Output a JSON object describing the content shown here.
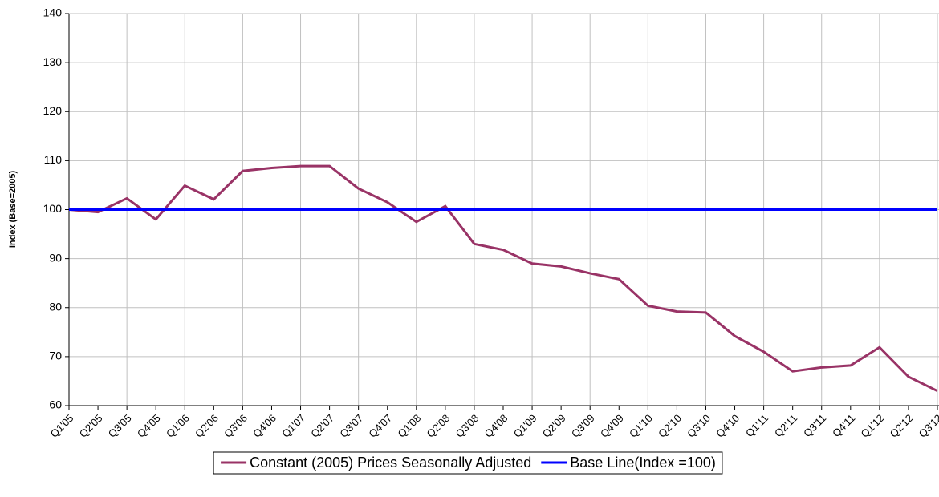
{
  "chart_data": {
    "type": "line",
    "ylabel": "Index (Base=2005)",
    "categories": [
      "Q1'05",
      "Q2'05",
      "Q3'05",
      "Q4'05",
      "Q1'06",
      "Q2'06",
      "Q3'06",
      "Q4'06",
      "Q1'07",
      "Q2'07",
      "Q3'07",
      "Q4'07",
      "Q1'08",
      "Q2'08",
      "Q3'08",
      "Q4'08",
      "Q1'09",
      "Q2'09",
      "Q3'09",
      "Q4'09",
      "Q1'10",
      "Q2'10",
      "Q3'10",
      "Q4'10",
      "Q1'11",
      "Q2'11",
      "Q3'11",
      "Q4'11",
      "Q1'12",
      "Q2'12",
      "Q3'12"
    ],
    "series": [
      {
        "name": "Constant (2005) Prices Seasonally Adjusted",
        "color": "#993366",
        "values": [
          100,
          99.5,
          102.3,
          98,
          104.9,
          102.1,
          107.9,
          108.5,
          108.9,
          108.9,
          104.3,
          101.5,
          97.5,
          100.7,
          93,
          91.8,
          89,
          88.4,
          87,
          85.8,
          80.4,
          79.2,
          79,
          74.2,
          71,
          67,
          67.8,
          68.2,
          71.9,
          65.9,
          63
        ]
      },
      {
        "name": "Base Line(Index =100)",
        "color": "#0000ff",
        "values": [
          100,
          100,
          100,
          100,
          100,
          100,
          100,
          100,
          100,
          100,
          100,
          100,
          100,
          100,
          100,
          100,
          100,
          100,
          100,
          100,
          100,
          100,
          100,
          100,
          100,
          100,
          100,
          100,
          100,
          100,
          100
        ]
      }
    ],
    "ylim": [
      60,
      140
    ],
    "yticks": [
      60,
      70,
      80,
      90,
      100,
      110,
      120,
      130,
      140
    ],
    "grid": true,
    "legend": "bottom"
  }
}
